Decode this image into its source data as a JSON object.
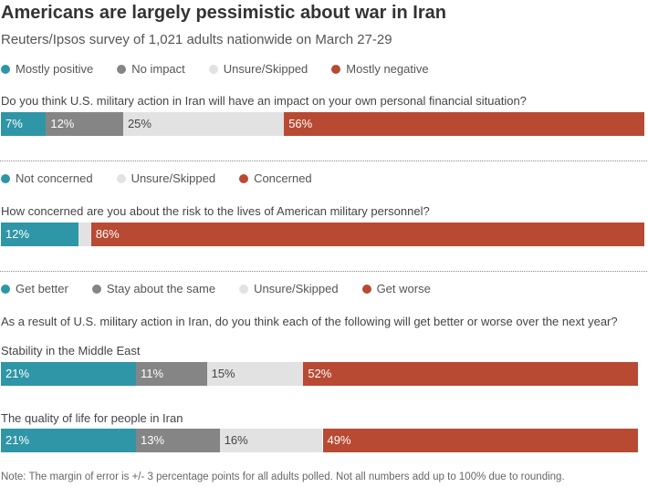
{
  "title": "Americans are largely pessimistic about war in Iran",
  "subtitle": "Reuters/Ipsos survey of 1,021 adults nationwide on March 27-29",
  "note": "Note:  The margin of error is +/- 3 percentage points for all adults polled. Not all numbers add up to 100% due to rounding.",
  "colors": {
    "teal": "#2e96a6",
    "gray": "#858585",
    "light": "#e2e2e2",
    "red": "#b84a33"
  },
  "chart_data": [
    {
      "type": "bar",
      "orientation": "horizontal-stacked",
      "legend": [
        "Mostly positive",
        "No impact",
        "Unsure/Skipped",
        "Mostly negative"
      ],
      "question": "Do you think U.S. military action in Iran will have an impact on your own personal financial situation?",
      "rows": [
        {
          "label": "",
          "values": [
            7,
            12,
            25,
            56
          ]
        }
      ]
    },
    {
      "type": "bar",
      "orientation": "horizontal-stacked",
      "legend": [
        "Not concerned",
        "Unsure/Skipped",
        "Concerned"
      ],
      "question": "How concerned are you about the risk to the lives of American military personnel?",
      "rows": [
        {
          "label": "",
          "values": [
            12,
            2,
            86
          ]
        }
      ]
    },
    {
      "type": "bar",
      "orientation": "horizontal-stacked",
      "legend": [
        "Get better",
        "Stay about the same",
        "Unsure/Skipped",
        "Get worse"
      ],
      "question": "As a result of U.S. military action in Iran, do you think each of the following will get better or worse over the next year?",
      "rows": [
        {
          "label": "Stability in the Middle East",
          "values": [
            21,
            11,
            15,
            52
          ]
        },
        {
          "label": "The quality of life for people in Iran",
          "values": [
            21,
            13,
            16,
            49
          ]
        }
      ]
    }
  ]
}
